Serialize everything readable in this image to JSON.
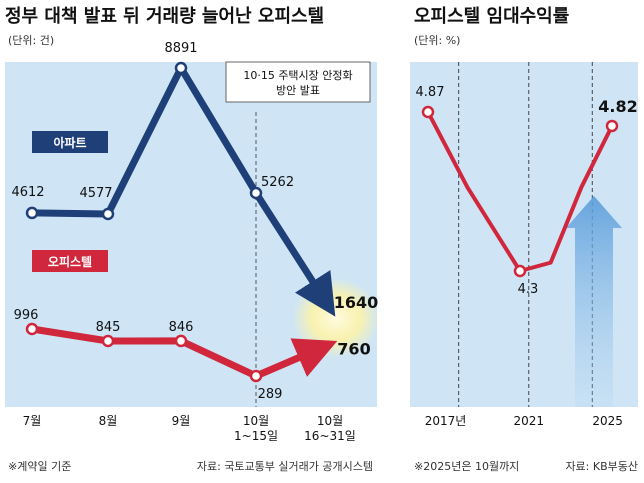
{
  "chart_data": [
    {
      "type": "line",
      "title": "정부 대책 발표 뒤 거래량 늘어난 오피스텔",
      "unit": "(단위: 건)",
      "categories": [
        "7월",
        "8월",
        "9월",
        "10월\n1~15일",
        "10월\n16~31일"
      ],
      "series": [
        {
          "name": "아파트",
          "color": "#1f3f78",
          "values": [
            4612,
            4577,
            8891,
            5262,
            1640
          ]
        },
        {
          "name": "오피스텔",
          "color": "#d0273c",
          "values": [
            996,
            845,
            846,
            289,
            760
          ]
        }
      ],
      "annotation": "10·15 주택시장 안정화\n방안 발표",
      "footnote_left": "※계약일 기준",
      "footnote_right": "자료: 국토교통부 실거래가 공개시스템"
    },
    {
      "type": "line",
      "title": "오피스텔 임대수익률",
      "unit": "(단위: %)",
      "x_labels": [
        "2017년",
        "2021",
        "2025"
      ],
      "series": [
        {
          "name": "임대수익률",
          "color": "#d0273c",
          "points": [
            [
              2016.4,
              4.87
            ],
            [
              2018.2,
              4.6
            ],
            [
              2020.6,
              4.3
            ],
            [
              2022,
              4.33
            ],
            [
              2023.4,
              4.6
            ],
            [
              2024.8,
              4.82
            ]
          ]
        }
      ],
      "labels": [
        {
          "text": "4.87",
          "x": 2016.4,
          "y": 4.87
        },
        {
          "text": "4.3",
          "x": 2020.6,
          "y": 4.3
        },
        {
          "text": "4.82",
          "x": 2024.8,
          "y": 4.82
        }
      ],
      "footnote_left": "※2025년은 10월까지",
      "footnote_right": "자료: KB부동산"
    }
  ]
}
